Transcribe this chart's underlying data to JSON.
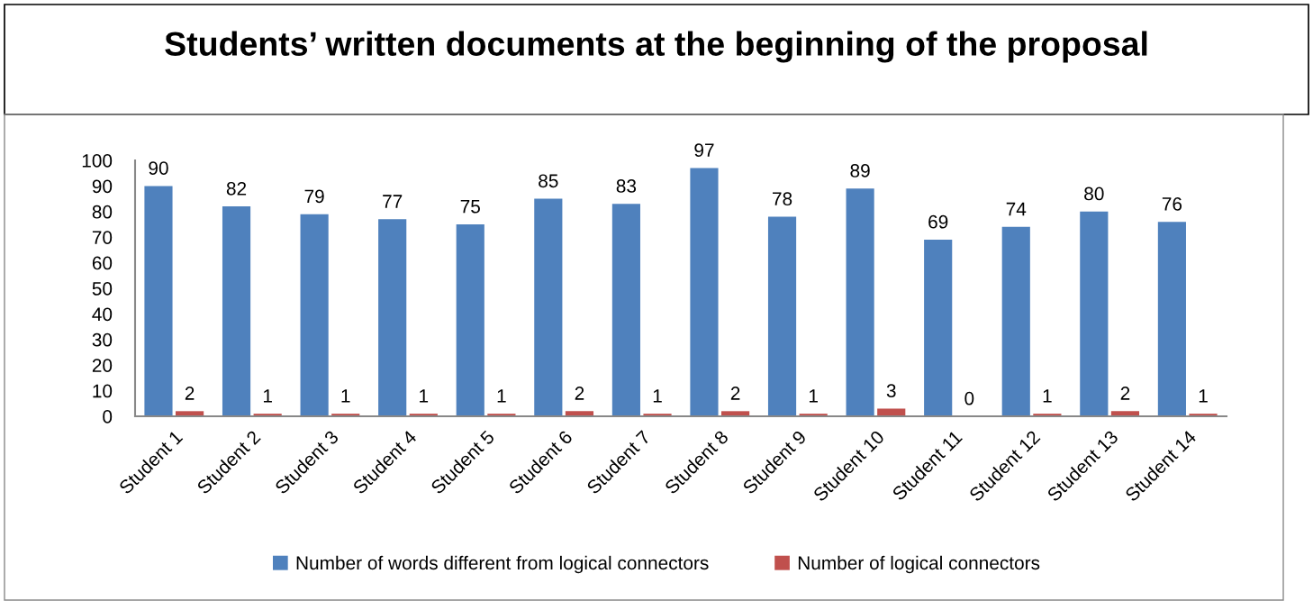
{
  "chart_data": {
    "type": "bar",
    "title": "Students’ written documents at the beginning of the proposal",
    "categories": [
      "Student 1",
      "Student 2",
      "Student 3",
      "Student 4",
      "Student 5",
      "Student 6",
      "Student 7",
      "Student 8",
      "Student 9",
      "Student 10",
      "Student 11",
      "Student 12",
      "Student 13",
      "Student 14"
    ],
    "series": [
      {
        "name": "Number of words different from logical connectors",
        "color": "#4f81bd",
        "values": [
          90,
          82,
          79,
          77,
          75,
          85,
          83,
          97,
          78,
          89,
          69,
          74,
          80,
          76
        ]
      },
      {
        "name": "Number of logical connectors",
        "color": "#c0504d",
        "values": [
          2,
          1,
          1,
          1,
          1,
          2,
          1,
          2,
          1,
          3,
          0,
          1,
          2,
          1
        ]
      }
    ],
    "ylim": [
      0,
      100
    ],
    "yticks": [
      0,
      10,
      20,
      30,
      40,
      50,
      60,
      70,
      80,
      90,
      100
    ],
    "legend": "bottom",
    "data_labels": true
  }
}
